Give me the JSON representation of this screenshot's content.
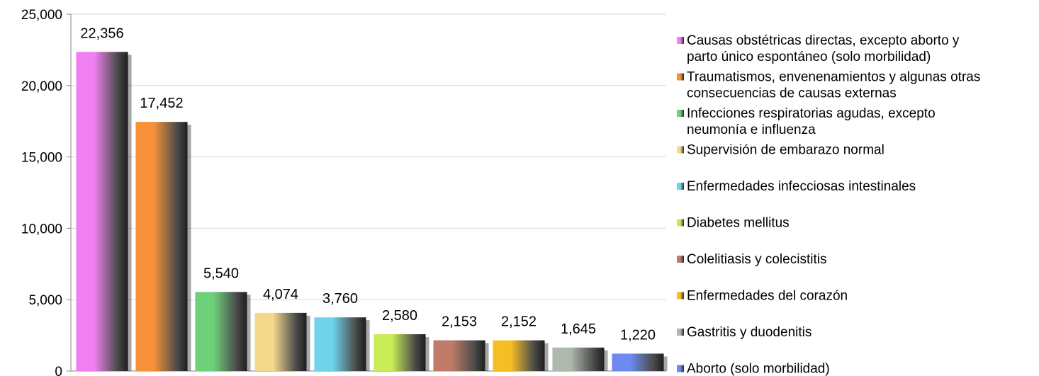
{
  "chart_data": {
    "type": "bar",
    "title": "",
    "xlabel": "",
    "ylabel": "",
    "ylim": [
      0,
      25000
    ],
    "yticks": [
      "0",
      "5,000",
      "10,000",
      "15,000",
      "20,000",
      "25,000"
    ],
    "grid": true,
    "legend_position": "right",
    "categories": [
      "Causas obstétricas directas, excepto aborto y parto único espontáneo (solo morbilidad)",
      "Traumatismos, envenenamientos y algunas otras consecuencias de causas externas",
      "Infecciones respiratorias agudas, excepto neumonía e influenza",
      "Supervisión de embarazo normal",
      "Enfermedades infecciosas intestinales",
      "Diabetes mellitus",
      "Colelitiasis y colecistitis",
      "Enfermedades del corazón",
      "Gastritis y duodenitis",
      "Aborto (solo morbilidad)"
    ],
    "legend_lines": [
      [
        "Causas obstétricas directas, excepto aborto y",
        "parto único espontáneo (solo morbilidad)"
      ],
      [
        "Traumatismos, envenenamientos y algunas otras",
        "consecuencias de causas externas"
      ],
      [
        "Infecciones respiratorias agudas, excepto",
        "neumonía e influenza"
      ],
      [
        "Supervisión de embarazo normal"
      ],
      [
        "Enfermedades infecciosas intestinales"
      ],
      [
        "Diabetes mellitus"
      ],
      [
        "Colelitiasis y colecistitis"
      ],
      [
        "Enfermedades del corazón"
      ],
      [
        "Gastritis y duodenitis"
      ],
      [
        "Aborto (solo morbilidad)"
      ]
    ],
    "values": [
      22356,
      17452,
      5540,
      4074,
      3760,
      2580,
      2153,
      2152,
      1645,
      1220
    ],
    "value_labels": [
      "22,356",
      "17,452",
      "5,540",
      "4,074",
      "3,760",
      "2,580",
      "2,153",
      "2,152",
      "1,645",
      "1,220"
    ],
    "colors": [
      "#f07ff0",
      "#f7913a",
      "#6fd07a",
      "#f4d98c",
      "#6fd3ec",
      "#c8ec55",
      "#c07c68",
      "#f5be25",
      "#aeb9ae",
      "#6e8af0"
    ]
  }
}
